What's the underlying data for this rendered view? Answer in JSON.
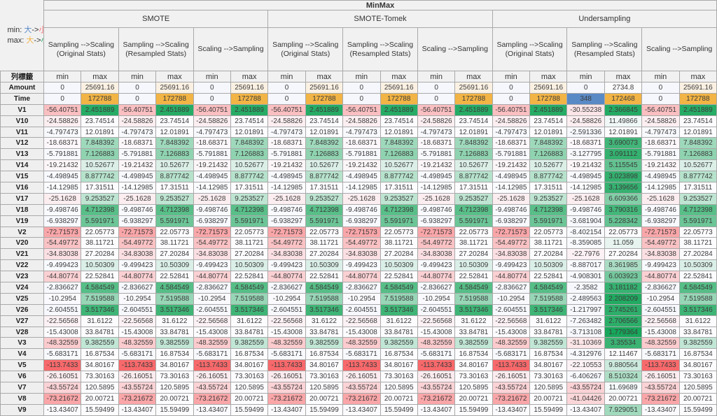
{
  "legend": {
    "min_label": "min:",
    "max_label": "max:",
    "big": "大",
    "arrow": "->",
    "small": "小"
  },
  "colors": {
    "min_scale_low": "#F8696B",
    "min_scale_mid": "#FCFCFF",
    "min_scale_high": "#5A8AC6",
    "max_scale_low": "#17A65A",
    "max_scale_mid": "#FCFCFF",
    "max_scale_high": "#F2B444",
    "legend_min_big": "#5A8AC6",
    "legend_min_small": "#F8696B",
    "legend_max_big": "#F2B444",
    "legend_max_small": "#17A65A"
  },
  "table": {
    "title": "MinMax",
    "row_label_header": "列標籤",
    "min_header": "min",
    "max_header": "max",
    "row_labels": [
      "Amount",
      "Time",
      "V1",
      "V10",
      "V11",
      "V12",
      "V13",
      "V14",
      "V15",
      "V16",
      "V17",
      "V18",
      "V19",
      "V2",
      "V20",
      "V21",
      "V22",
      "V23",
      "V24",
      "V25",
      "V26",
      "V27",
      "V28",
      "V3",
      "V4",
      "V5",
      "V6",
      "V7",
      "V8",
      "V9"
    ],
    "groups": [
      {
        "name": "SMOTE",
        "subcolumns": [
          {
            "label": "Sampling -->Scaling\n(Original Stats)",
            "min": [
              "0",
              "0",
              "-56.40751",
              "-24.58826",
              "-4.797473",
              "-18.68371",
              "-5.791881",
              "-19.21432",
              "-4.498945",
              "-14.12985",
              "-25.1628",
              "-9.498746",
              "-6.938297",
              "-72.71573",
              "-54.49772",
              "-34.83038",
              "-9.499423",
              "-44.80774",
              "-2.836627",
              "-10.2954",
              "-2.604551",
              "-22.56568",
              "-15.43008",
              "-48.32559",
              "-5.683171",
              "-113.7433",
              "-26.16051",
              "-43.55724",
              "-73.21672",
              "-13.43407"
            ],
            "max": [
              "25691.16",
              "172788",
              "2.451889",
              "23.74514",
              "12.01891",
              "7.848392",
              "7.126883",
              "10.52677",
              "8.877742",
              "17.31511",
              "9.253527",
              "4.712398",
              "5.591971",
              "22.05773",
              "38.11721",
              "27.20284",
              "10.50309",
              "22.52841",
              "4.584549",
              "7.519588",
              "3.517346",
              "31.6122",
              "33.84781",
              "9.382559",
              "16.87534",
              "34.80167",
              "73.30163",
              "120.5895",
              "20.00721",
              "15.59499"
            ]
          },
          {
            "label": "Sampling -->Scaling\n(Resampled Stats)",
            "min": [
              "0",
              "0",
              "-56.40751",
              "-24.58826",
              "-4.797473",
              "-18.68371",
              "-5.791881",
              "-19.21432",
              "-4.498945",
              "-14.12985",
              "-25.1628",
              "-9.498746",
              "-6.938297",
              "-72.71573",
              "-54.49772",
              "-34.83038",
              "-9.499423",
              "-44.80774",
              "-2.836627",
              "-10.2954",
              "-2.604551",
              "-22.56568",
              "-15.43008",
              "-48.32559",
              "-5.683171",
              "-113.7433",
              "-26.16051",
              "-43.55724",
              "-73.21672",
              "-13.43407"
            ],
            "max": [
              "25691.16",
              "172788",
              "2.451889",
              "23.74514",
              "12.01891",
              "7.848392",
              "7.126883",
              "10.52677",
              "8.877742",
              "17.31511",
              "9.253527",
              "4.712398",
              "5.591971",
              "22.05773",
              "38.11721",
              "27.20284",
              "10.50309",
              "22.52841",
              "4.584549",
              "7.519588",
              "3.517346",
              "31.6122",
              "33.84781",
              "9.382559",
              "16.87534",
              "34.80167",
              "73.30163",
              "120.5895",
              "20.00721",
              "15.59499"
            ]
          },
          {
            "label": "Scaling -->Sampling",
            "min": [
              "0",
              "0",
              "-56.40751",
              "-24.58826",
              "-4.797473",
              "-18.68371",
              "-5.791881",
              "-19.21432",
              "-4.498945",
              "-14.12985",
              "-25.1628",
              "-9.498746",
              "-6.938297",
              "-72.71573",
              "-54.49772",
              "-34.83038",
              "-9.499423",
              "-44.80774",
              "-2.836627",
              "-10.2954",
              "-2.604551",
              "-22.56568",
              "-15.43008",
              "-48.32559",
              "-5.683171",
              "-113.7433",
              "-26.16051",
              "-43.55724",
              "-73.21672",
              "-13.43407"
            ],
            "max": [
              "25691.16",
              "172788",
              "2.451889",
              "23.74514",
              "12.01891",
              "7.848392",
              "7.126883",
              "10.52677",
              "8.877742",
              "17.31511",
              "9.253527",
              "4.712398",
              "5.591971",
              "22.05773",
              "38.11721",
              "27.20284",
              "10.50309",
              "22.52841",
              "4.584549",
              "7.519588",
              "3.517346",
              "31.6122",
              "33.84781",
              "9.382559",
              "16.87534",
              "34.80167",
              "73.30163",
              "120.5895",
              "20.00721",
              "15.59499"
            ]
          }
        ]
      },
      {
        "name": "SMOTE-Tomek",
        "subcolumns": [
          {
            "label": "Sampling -->Scaling\n(Original Stats)",
            "min": [
              "0",
              "0",
              "-56.40751",
              "-24.58826",
              "-4.797473",
              "-18.68371",
              "-5.791881",
              "-19.21432",
              "-4.498945",
              "-14.12985",
              "-25.1628",
              "-9.498746",
              "-6.938297",
              "-72.71573",
              "-54.49772",
              "-34.83038",
              "-9.499423",
              "-44.80774",
              "-2.836627",
              "-10.2954",
              "-2.604551",
              "-22.56568",
              "-15.43008",
              "-48.32559",
              "-5.683171",
              "-113.7433",
              "-26.16051",
              "-43.55724",
              "-73.21672",
              "-13.43407"
            ],
            "max": [
              "25691.16",
              "172788",
              "2.451889",
              "23.74514",
              "12.01891",
              "7.848392",
              "7.126883",
              "10.52677",
              "8.877742",
              "17.31511",
              "9.253527",
              "4.712398",
              "5.591971",
              "22.05773",
              "38.11721",
              "27.20284",
              "10.50309",
              "22.52841",
              "4.584549",
              "7.519588",
              "3.517346",
              "31.6122",
              "33.84781",
              "9.382559",
              "16.87534",
              "34.80167",
              "73.30163",
              "120.5895",
              "20.00721",
              "15.59499"
            ]
          },
          {
            "label": "Sampling -->Scaling\n(Resampled Stats)",
            "min": [
              "0",
              "0",
              "-56.40751",
              "-24.58826",
              "-4.797473",
              "-18.68371",
              "-5.791881",
              "-19.21432",
              "-4.498945",
              "-14.12985",
              "-25.1628",
              "-9.498746",
              "-6.938297",
              "-72.71573",
              "-54.49772",
              "-34.83038",
              "-9.499423",
              "-44.80774",
              "-2.836627",
              "-10.2954",
              "-2.604551",
              "-22.56568",
              "-15.43008",
              "-48.32559",
              "-5.683171",
              "-113.7433",
              "-26.16051",
              "-43.55724",
              "-73.21672",
              "-13.43407"
            ],
            "max": [
              "25691.16",
              "172788",
              "2.451889",
              "23.74514",
              "12.01891",
              "7.848392",
              "7.126883",
              "10.52677",
              "8.877742",
              "17.31511",
              "9.253527",
              "4.712398",
              "5.591971",
              "22.05773",
              "38.11721",
              "27.20284",
              "10.50309",
              "22.52841",
              "4.584549",
              "7.519588",
              "3.517346",
              "31.6122",
              "33.84781",
              "9.382559",
              "16.87534",
              "34.80167",
              "73.30163",
              "120.5895",
              "20.00721",
              "15.59499"
            ]
          },
          {
            "label": "Scaling -->Sampling",
            "min": [
              "0",
              "0",
              "-56.40751",
              "-24.58826",
              "-4.797473",
              "-18.68371",
              "-5.791881",
              "-19.21432",
              "-4.498945",
              "-14.12985",
              "-25.1628",
              "-9.498746",
              "-6.938297",
              "-72.71573",
              "-54.49772",
              "-34.83038",
              "-9.499423",
              "-44.80774",
              "-2.836627",
              "-10.2954",
              "-2.604551",
              "-22.56568",
              "-15.43008",
              "-48.32559",
              "-5.683171",
              "-113.7433",
              "-26.16051",
              "-43.55724",
              "-73.21672",
              "-13.43407"
            ],
            "max": [
              "25691.16",
              "172788",
              "2.451889",
              "23.74514",
              "12.01891",
              "7.848392",
              "7.126883",
              "10.52677",
              "8.877742",
              "17.31511",
              "9.253527",
              "4.712398",
              "5.591971",
              "22.05773",
              "38.11721",
              "27.20284",
              "10.50309",
              "22.52841",
              "4.584549",
              "7.519588",
              "3.517346",
              "31.6122",
              "33.84781",
              "9.382559",
              "16.87534",
              "34.80167",
              "73.30163",
              "120.5895",
              "20.00721",
              "15.59499"
            ]
          }
        ]
      },
      {
        "name": "Undersampling",
        "subcolumns": [
          {
            "label": "Sampling -->Scaling\n(Original Stats)",
            "min": [
              "0",
              "0",
              "-56.40751",
              "-24.58826",
              "-4.797473",
              "-18.68371",
              "-5.791881",
              "-19.21432",
              "-4.498945",
              "-14.12985",
              "-25.1628",
              "-9.498746",
              "-6.938297",
              "-72.71573",
              "-54.49772",
              "-34.83038",
              "-9.499423",
              "-44.80774",
              "-2.836627",
              "-10.2954",
              "-2.604551",
              "-22.56568",
              "-15.43008",
              "-48.32559",
              "-5.683171",
              "-113.7433",
              "-26.16051",
              "-43.55724",
              "-73.21672",
              "-13.43407"
            ],
            "max": [
              "25691.16",
              "172788",
              "2.451889",
              "23.74514",
              "12.01891",
              "7.848392",
              "7.126883",
              "10.52677",
              "8.877742",
              "17.31511",
              "9.253527",
              "4.712398",
              "5.591971",
              "22.05773",
              "38.11721",
              "27.20284",
              "10.50309",
              "22.52841",
              "4.584549",
              "7.519588",
              "3.517346",
              "31.6122",
              "33.84781",
              "9.382559",
              "16.87534",
              "34.80167",
              "73.30163",
              "120.5895",
              "20.00721",
              "15.59499"
            ]
          },
          {
            "label": "Sampling -->Scaling\n(Resampled Stats)",
            "min": [
              "0",
              "348",
              "-30.55238",
              "-24.58826",
              "-2.591336",
              "-18.68371",
              "-3.127795",
              "-19.21432",
              "-4.498945",
              "-14.12985",
              "-25.1628",
              "-9.498746",
              "-3.681904",
              "-8.402154",
              "-8.359085",
              "-22.7976",
              "-8.887017",
              "-4.908301",
              "-2.3582",
              "-2.489563",
              "-1.217997",
              "-7.263482",
              "-3.713108",
              "-31.10369",
              "-4.312976",
              "-22.10553",
              "-6.406267",
              "-43.55724",
              "-41.04426",
              "-13.43407"
            ],
            "max": [
              "2734.8",
              "172468",
              "2.366845",
              "11.49866",
              "12.01891",
              "3.690073",
              "3.091112",
              "5.115545",
              "3.023898",
              "3.139656",
              "6.609366",
              "3.790316",
              "5.228342",
              "22.05773",
              "11.059",
              "27.20284",
              "8.361985",
              "6.003923",
              "3.181182",
              "2.208209",
              "2.745261",
              "2.706566",
              "1.779364",
              "3.35534",
              "12.11467",
              "9.880564",
              "8.510324",
              "11.69689",
              "20.00721",
              "7.929051"
            ]
          },
          {
            "label": "Scaling -->Sampling",
            "min": [
              "0",
              "0",
              "-56.40751",
              "-24.58826",
              "-4.797473",
              "-18.68371",
              "-5.791881",
              "-19.21432",
              "-4.498945",
              "-14.12985",
              "-25.1628",
              "-9.498746",
              "-6.938297",
              "-72.71573",
              "-54.49772",
              "-34.83038",
              "-9.499423",
              "-44.80774",
              "-2.836627",
              "-10.2954",
              "-2.604551",
              "-22.56568",
              "-15.43008",
              "-48.32559",
              "-5.683171",
              "-113.7433",
              "-26.16051",
              "-43.55724",
              "-73.21672",
              "-13.43407"
            ],
            "max": [
              "25691.16",
              "172788",
              "2.451889",
              "23.74514",
              "12.01891",
              "7.848392",
              "7.126883",
              "10.52677",
              "8.877742",
              "17.31511",
              "9.253527",
              "4.712398",
              "5.591971",
              "22.05773",
              "38.11721",
              "27.20284",
              "10.50309",
              "22.52841",
              "4.584549",
              "7.519588",
              "3.517346",
              "31.6122",
              "33.84781",
              "9.382559",
              "16.87534",
              "34.80167",
              "73.30163",
              "120.5895",
              "20.00721",
              "15.59499"
            ]
          }
        ]
      }
    ]
  }
}
